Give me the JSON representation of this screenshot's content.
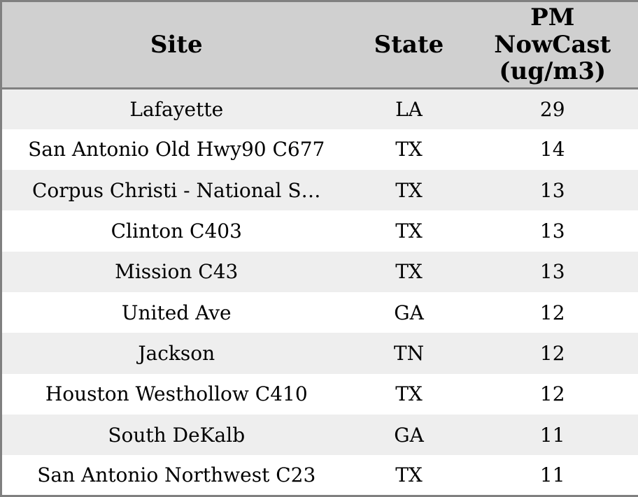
{
  "colors": {
    "header_bg": "#d0d0d0",
    "stripe_bg": "#eeeeee",
    "row_bg": "#ffffff",
    "border": "#808080",
    "text": "#000000"
  },
  "chart_data": {
    "type": "table",
    "columns": [
      {
        "label": "Site",
        "display": "Site"
      },
      {
        "label": "State",
        "display": "State"
      },
      {
        "label": "PM NowCast (ug/m3)",
        "display": "PM\nNowCast\n(ug/m3)"
      }
    ],
    "rows": [
      {
        "site": "Lafayette",
        "state": "LA",
        "pm_nowcast": "29"
      },
      {
        "site": "San Antonio Old Hwy90 C677",
        "state": "TX",
        "pm_nowcast": "14"
      },
      {
        "site": "Corpus Christi - National S…",
        "state": "TX",
        "pm_nowcast": "13"
      },
      {
        "site": "Clinton C403",
        "state": "TX",
        "pm_nowcast": "13"
      },
      {
        "site": "Mission C43",
        "state": "TX",
        "pm_nowcast": "13"
      },
      {
        "site": "United Ave",
        "state": "GA",
        "pm_nowcast": "12"
      },
      {
        "site": "Jackson",
        "state": "TN",
        "pm_nowcast": "12"
      },
      {
        "site": "Houston Westhollow C410",
        "state": "TX",
        "pm_nowcast": "12"
      },
      {
        "site": "South DeKalb",
        "state": "GA",
        "pm_nowcast": "11"
      },
      {
        "site": "San Antonio Northwest C23",
        "state": "TX",
        "pm_nowcast": "11"
      }
    ]
  }
}
